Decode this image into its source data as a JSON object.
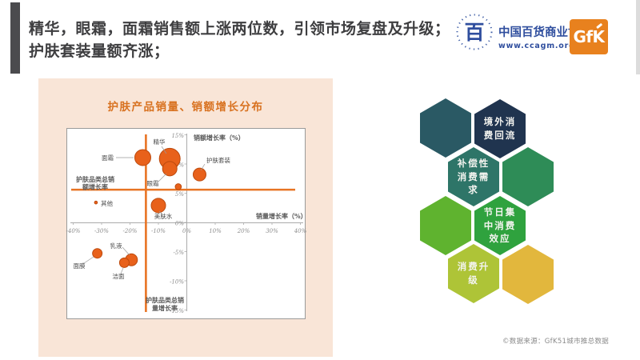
{
  "header": {
    "title_line1": "精华，眼霜，面霜销售额上涨两位数，引领市场复盘及升级；",
    "title_line2": "护肤套装量额齐涨；",
    "ccagm": {
      "emblem_char": "百",
      "org_name": "中国百货商业协会",
      "website": "www.ccagm.org.cn",
      "brand_blue": "#2F4E9E"
    },
    "gfk": {
      "label": "GfK",
      "brand_orange": "#E8811E"
    }
  },
  "chart_panel": {
    "bg": "#F9E5D7",
    "title": "护肤产品销量、销额增长分布",
    "title_color": "#D8711F"
  },
  "chart_data": {
    "type": "scatter",
    "title": "护肤产品销量、销额增长分布",
    "xlabel": "销量增长率（%）",
    "ylabel": "销额增长率（%）",
    "xlim": [
      -40,
      40
    ],
    "ylim": [
      -15,
      15
    ],
    "x_ticks": [
      -40,
      -30,
      -20,
      -10,
      0,
      10,
      20,
      30,
      40
    ],
    "y_ticks": [
      15,
      10,
      5,
      0,
      -5,
      -10,
      -15
    ],
    "grid": false,
    "bubble_color": "#E8611B",
    "bubble_stroke": "#BC4A0E",
    "ref_color": "#E87424",
    "axis_color": "#ABABAB",
    "bubbles": [
      {
        "name": "精华",
        "x": -6,
        "y": 10.9,
        "r": 13
      },
      {
        "name": "面霜",
        "x": -15.5,
        "y": 11.1,
        "r": 10
      },
      {
        "name": "眼霜",
        "x": -6,
        "y": 9.2,
        "r": 9
      },
      {
        "name": "美肤水",
        "x": -10,
        "y": 2.9,
        "r": 9
      },
      {
        "name": "护肤套装",
        "x": 4.5,
        "y": 8.2,
        "r": 8
      },
      {
        "name": "乳液",
        "x": -19.5,
        "y": -6.4,
        "r": 7.5
      },
      {
        "name": "面膜",
        "x": -31.5,
        "y": -5.3,
        "r": 6
      },
      {
        "name": "洁面",
        "x": -22,
        "y": -6.9,
        "r": 6
      },
      {
        "name": "",
        "x": -3,
        "y": 6.1,
        "r": 3.8
      },
      {
        "name": "其他",
        "x": -32,
        "y": 3.4,
        "r": 1.8
      }
    ],
    "ref_vertical": {
      "value": -14.4,
      "label": "护肤品类总销\n量增长率"
    },
    "ref_horizontal": {
      "value": 5.6,
      "label": "护肤品类总销\n额增长率"
    }
  },
  "hexagons": [
    {
      "label": "",
      "color": "#2A5964"
    },
    {
      "label": "境外消\n费回流",
      "color": "#20344F"
    },
    {
      "label": "补偿性\n消费需\n求",
      "color": "#2E7568"
    },
    {
      "label": "",
      "color": "#2E8C57"
    },
    {
      "label": "",
      "color": "#5FB32F"
    },
    {
      "label": "节日集\n中消费\n效应",
      "color": "#2FA23E"
    },
    {
      "label": "消费升\n级",
      "color": "#AEC437"
    },
    {
      "label": "",
      "color": "#E2B73D"
    }
  ],
  "footer": {
    "source": "©数据来源：GfK51城市推总数据"
  }
}
